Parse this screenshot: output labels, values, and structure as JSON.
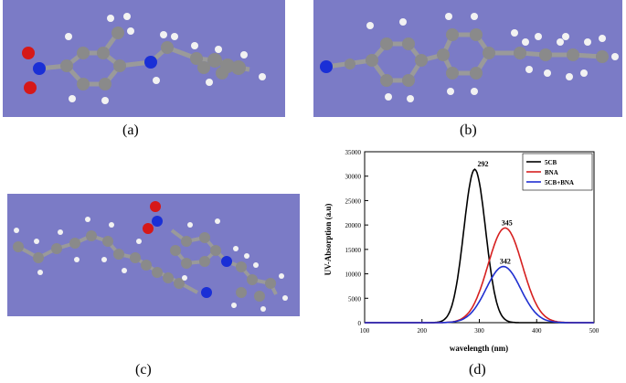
{
  "figure": {
    "panels": [
      {
        "caption": "(a)"
      },
      {
        "caption": "(b)"
      },
      {
        "caption": "(c)"
      },
      {
        "caption": "(d)"
      }
    ],
    "colors": {
      "background": "#7b7bc6",
      "carbon": "#8a8a8a",
      "hydrogen": "#f2f2f2",
      "nitrogen": "#1a2fd6",
      "oxygen": "#d61818"
    }
  },
  "chart_data": {
    "type": "line",
    "title": "",
    "xlabel": "wavelength (nm)",
    "ylabel": "UV-Absorption (a.u)",
    "xlim": [
      100,
      500
    ],
    "ylim": [
      0,
      35000
    ],
    "xticks": [
      "100",
      "200",
      "300",
      "400",
      "500"
    ],
    "yticks": [
      "0",
      "5000",
      "10000",
      "15000",
      "20000",
      "25000",
      "30000",
      "35000"
    ],
    "legend_position": "top-right",
    "series": [
      {
        "name": "5CB",
        "color": "#000000",
        "peak_x": 292,
        "peak_y": 31400,
        "sigma": 19
      },
      {
        "name": "BNA",
        "color": "#d62020",
        "peak_x": 345,
        "peak_y": 19400,
        "sigma": 30
      },
      {
        "name": "5CB+BNA",
        "color": "#1f2fd0",
        "peak_x": 342,
        "peak_y": 11500,
        "sigma": 30
      }
    ],
    "annotations": [
      "292",
      "345",
      "342"
    ]
  }
}
